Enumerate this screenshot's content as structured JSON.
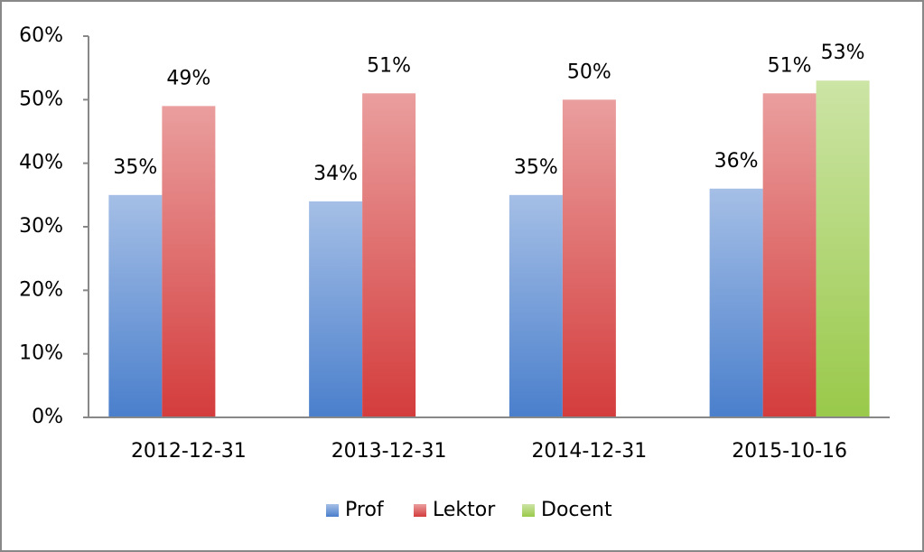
{
  "chart_data": {
    "type": "bar",
    "categories": [
      "2012-12-31",
      "2013-12-31",
      "2014-12-31",
      "2015-10-16"
    ],
    "series": [
      {
        "name": "Prof",
        "color": "#4a7fcc",
        "values": [
          35,
          34,
          35,
          36
        ],
        "value_labels": [
          "35%",
          "34%",
          "35%",
          "36%"
        ]
      },
      {
        "name": "Lektor",
        "color": "#d43c3c",
        "values": [
          49,
          51,
          50,
          51
        ],
        "value_labels": [
          "49%",
          "51%",
          "50%",
          "51%"
        ]
      },
      {
        "name": "Docent",
        "color": "#99c94a",
        "values": [
          null,
          null,
          null,
          53
        ],
        "value_labels": [
          null,
          null,
          null,
          "53%"
        ]
      }
    ],
    "ylim": [
      0,
      60
    ],
    "yticks": [
      {
        "value": 0,
        "label": "0%"
      },
      {
        "value": 10,
        "label": "10%"
      },
      {
        "value": 20,
        "label": "20%"
      },
      {
        "value": 30,
        "label": "30%"
      },
      {
        "value": 40,
        "label": "40%"
      },
      {
        "value": 50,
        "label": "50%"
      },
      {
        "value": 60,
        "label": "60%"
      }
    ],
    "grid": false,
    "legend": "bottom"
  }
}
